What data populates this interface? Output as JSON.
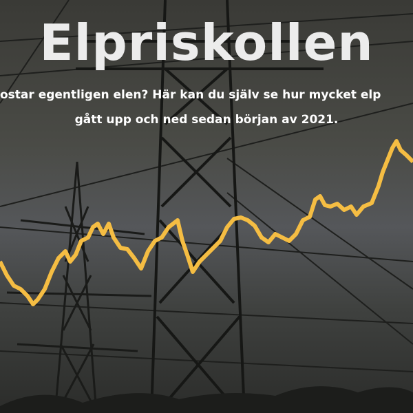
{
  "header": {
    "title": "Elpriskollen",
    "intro": [
      "ostar egentligen elen? Här kan du själv se hur mycket elp",
      "gått upp och ned sedan början av 2021."
    ]
  }
}
